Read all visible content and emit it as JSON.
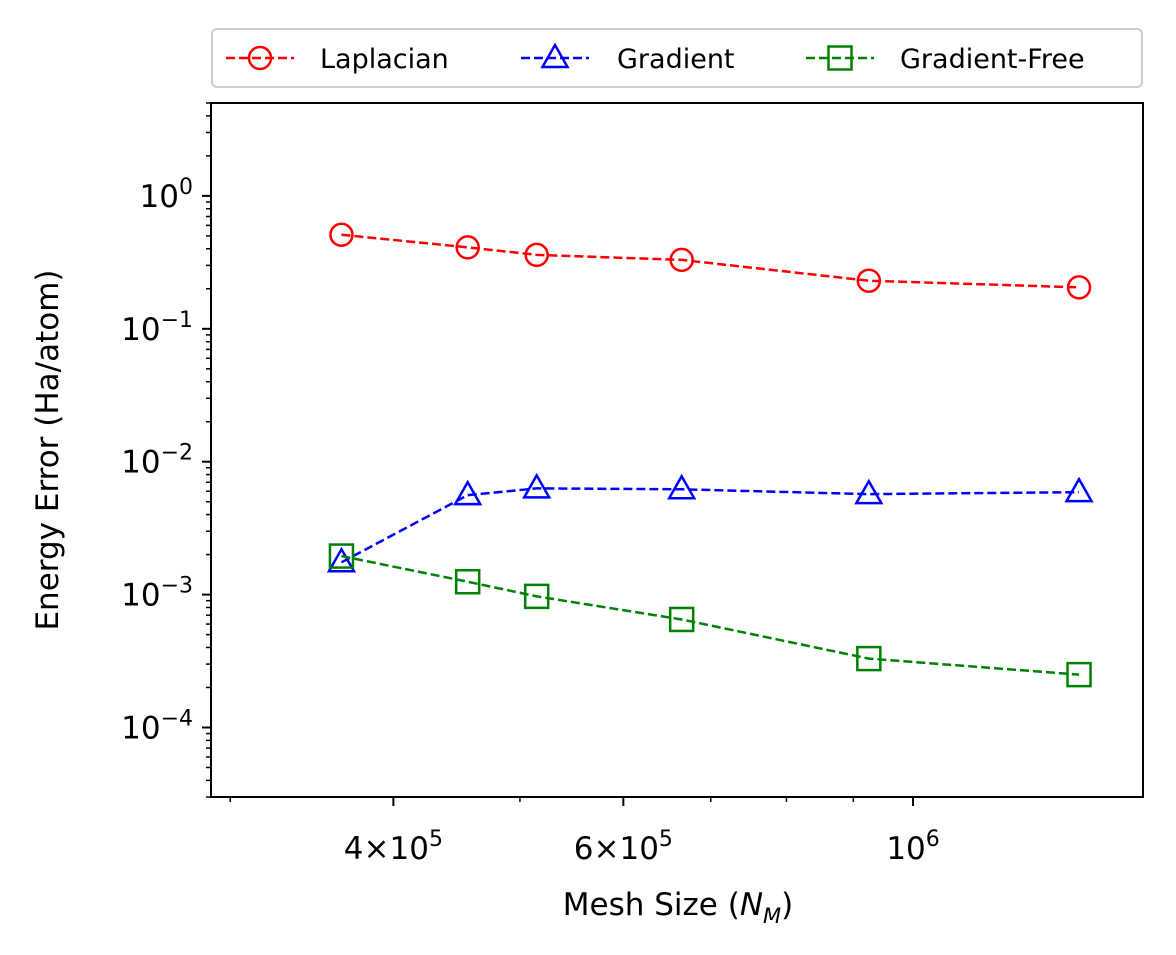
{
  "chart_data": {
    "type": "line",
    "xscale": "log",
    "yscale": "log",
    "xlabel": {
      "prefix": "Mesh Size (",
      "var": "N",
      "sub": "M",
      "suffix": ")"
    },
    "ylabel": "Energy Error (Ha/atom)",
    "xlim": [
      290000,
      1500000
    ],
    "ylim": [
      3e-05,
      5
    ],
    "x_ticks": [
      {
        "value": 400000,
        "mantissa": "4",
        "times": "×",
        "base": "10",
        "exp": "5"
      },
      {
        "value": 600000,
        "mantissa": "6",
        "times": "×",
        "base": "10",
        "exp": "5"
      },
      {
        "value": 1000000,
        "mantissa": "",
        "times": "",
        "base": "10",
        "exp": "6"
      }
    ],
    "y_ticks": [
      {
        "value": 1,
        "base": "10",
        "exp": "0"
      },
      {
        "value": 0.1,
        "base": "10",
        "exp": "−1"
      },
      {
        "value": 0.01,
        "base": "10",
        "exp": "−2"
      },
      {
        "value": 0.001,
        "base": "10",
        "exp": "−3"
      },
      {
        "value": 0.0001,
        "base": "10",
        "exp": "−4"
      }
    ],
    "x": [
      365000,
      456000,
      515000,
      665000,
      925000,
      1340000
    ],
    "series": [
      {
        "name": "Laplacian",
        "color": "#ff0000",
        "marker": "circle",
        "values": [
          0.51,
          0.41,
          0.36,
          0.33,
          0.23,
          0.205
        ]
      },
      {
        "name": "Gradient",
        "color": "#0000ff",
        "marker": "triangle",
        "values": [
          0.00175,
          0.0056,
          0.0063,
          0.0062,
          0.0057,
          0.0059
        ]
      },
      {
        "name": "Gradient-Free",
        "color": "#008000",
        "marker": "square",
        "values": [
          0.00195,
          0.00125,
          0.00097,
          0.00065,
          0.00033,
          0.00025
        ]
      }
    ],
    "legend_position": "top, above plot"
  }
}
